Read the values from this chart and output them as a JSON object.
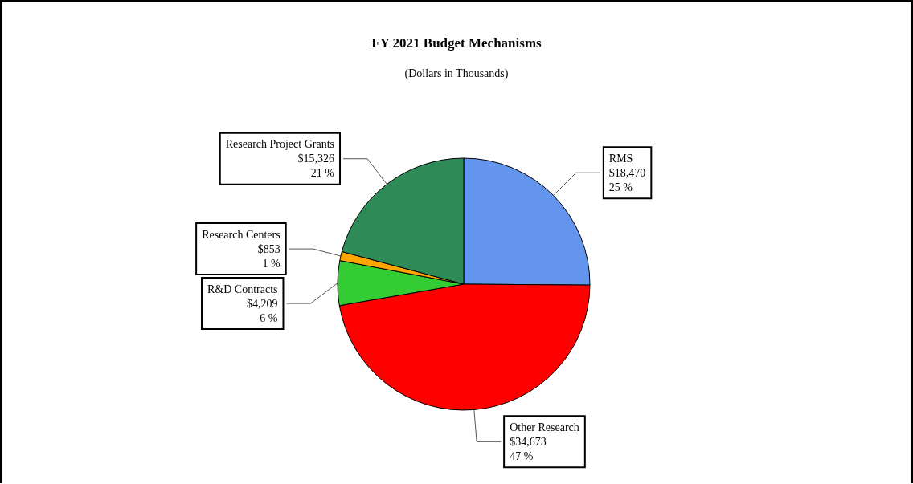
{
  "chart_data": {
    "type": "pie",
    "title": "FY 2021 Budget Mechanisms",
    "subtitle": "(Dollars in Thousands)",
    "categories": [
      "RMS",
      "Other Research",
      "R&D Contracts",
      "Research Centers",
      "Research Project Grants"
    ],
    "values": [
      18470,
      34673,
      4209,
      853,
      15326
    ],
    "colors": [
      "#6495ed",
      "#ff0000",
      "#33cc33",
      "#ffa500",
      "#2e8b57"
    ],
    "value_labels": [
      "$18,470\n25 %",
      "$34,673\n47 %",
      "$4,209\n6 %",
      "$853\n1 %",
      "$15,326\n21 %"
    ],
    "legend": false
  }
}
